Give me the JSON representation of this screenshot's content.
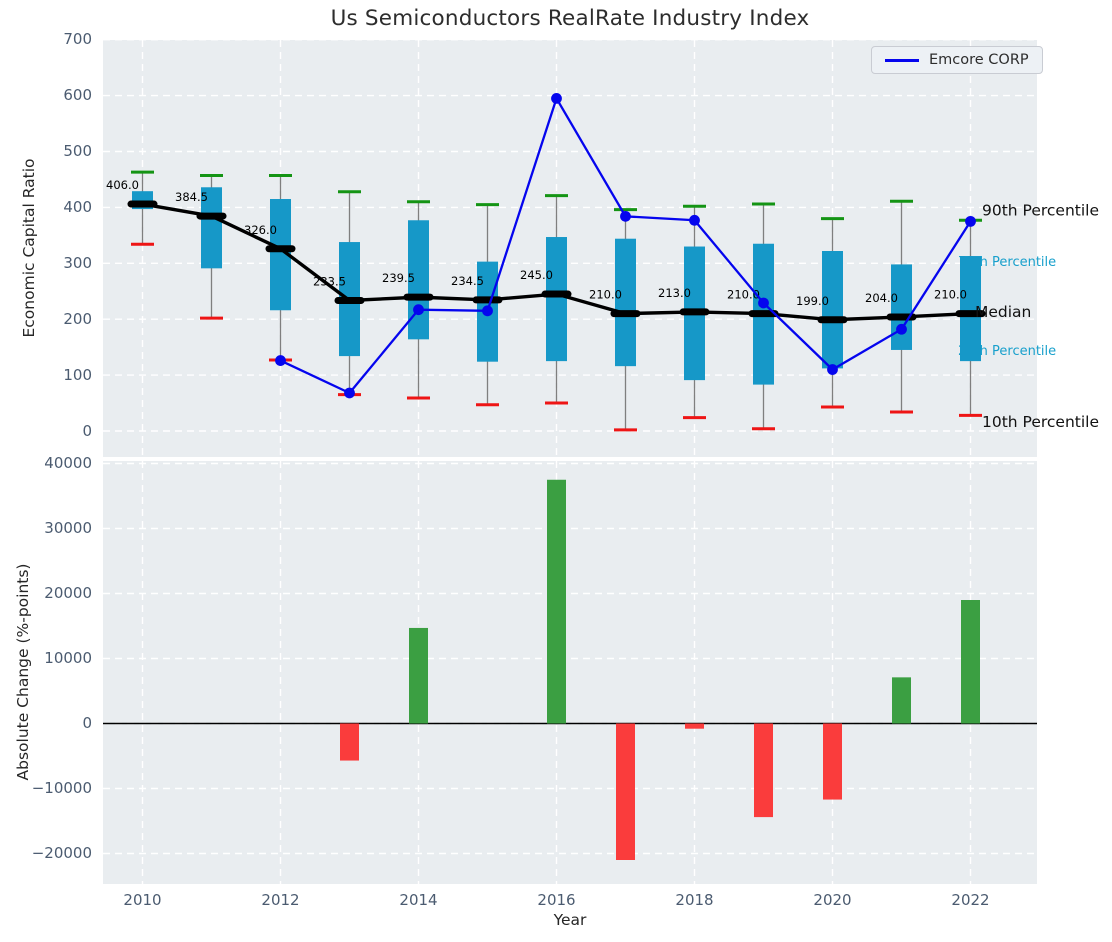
{
  "title": "Us Semiconductors RealRate Industry Index",
  "legend": {
    "label": "Emcore CORP"
  },
  "colors": {
    "plot_bg": "#e9edf0",
    "grid": "#ffffff",
    "box": "#1698c8",
    "whisker": "#7f7f7f",
    "p90_cap": "#149414",
    "p10_cap": "#ee1515",
    "median_line": "#000000",
    "emcore_line": "#0505ee",
    "bar_positive": "#3b9f42",
    "bar_negative": "#fa3c3c",
    "tick_label": "#4b5b70",
    "cyan_label": "#18a0cc"
  },
  "chart_data": [
    {
      "type": "boxplot+line",
      "title": "Us Semiconductors RealRate Industry Index",
      "ylabel": "Economic Capital Ratio",
      "ylim": [
        -45,
        700
      ],
      "yticks": [
        0,
        100,
        200,
        300,
        400,
        500,
        600,
        700
      ],
      "xticks": [
        2010,
        2012,
        2014,
        2016,
        2018,
        2020,
        2022
      ],
      "grid": true,
      "legend_position": "upper right",
      "years": [
        2010,
        2011,
        2012,
        2013,
        2014,
        2015,
        2016,
        2017,
        2018,
        2019,
        2020,
        2021,
        2022
      ],
      "p10": [
        334,
        202,
        127,
        65,
        59,
        47,
        50,
        2,
        24,
        4,
        43,
        34,
        28
      ],
      "p25": [
        397,
        291,
        216,
        134,
        164,
        124,
        125,
        116,
        91,
        83,
        112,
        145,
        125
      ],
      "median": [
        406,
        384.5,
        326,
        233.5,
        239.5,
        234.5,
        245,
        210,
        213,
        210,
        199,
        204,
        210
      ],
      "p75": [
        429,
        436,
        415,
        338,
        377,
        303,
        347,
        344,
        330,
        335,
        322,
        298,
        313
      ],
      "p90": [
        463,
        457,
        457,
        428,
        410,
        405,
        421,
        396,
        402,
        406,
        380,
        411,
        377
      ],
      "median_labels": [
        "406.0",
        "384.5",
        "326.0",
        "233.5",
        "239.5",
        "234.5",
        "245.0",
        "210.0",
        "213.0",
        "210.0",
        "199.0",
        "204.0",
        "210.0"
      ],
      "series": [
        {
          "name": "Emcore CORP",
          "x": [
            2012,
            2013,
            2014,
            2015,
            2016,
            2017,
            2018,
            2019,
            2020,
            2021,
            2022
          ],
          "values": [
            126,
            68,
            217,
            215,
            595,
            384,
            377,
            229,
            110,
            182,
            375
          ]
        }
      ],
      "right_labels": [
        {
          "text": "90th Percentile",
          "anchor_value": 394,
          "style": "black",
          "behind": false
        },
        {
          "text": "75th Percentile",
          "anchor_value": 301,
          "style": "cyan",
          "behind": true
        },
        {
          "text": "Median",
          "anchor_value": 212,
          "style": "median",
          "behind": false
        },
        {
          "text": "25th Percentile",
          "anchor_value": 142,
          "style": "cyan",
          "behind": true
        },
        {
          "text": "10th Percentile",
          "anchor_value": 15,
          "style": "black",
          "behind": false
        }
      ]
    },
    {
      "type": "bar",
      "ylabel": "Absolute Change (%-points)",
      "xlabel": "Year",
      "ylim": [
        -24700,
        40300
      ],
      "yticks": [
        -20000,
        -10000,
        0,
        10000,
        20000,
        30000,
        40000
      ],
      "xticks": [
        2010,
        2012,
        2014,
        2016,
        2018,
        2020,
        2022
      ],
      "grid": true,
      "categories": [
        2010,
        2011,
        2012,
        2013,
        2014,
        2015,
        2016,
        2017,
        2018,
        2019,
        2020,
        2021,
        2022
      ],
      "values": [
        0,
        0,
        0,
        -5700,
        14700,
        0,
        37500,
        -21000,
        -800,
        -14400,
        -11700,
        7100,
        19000
      ]
    }
  ]
}
